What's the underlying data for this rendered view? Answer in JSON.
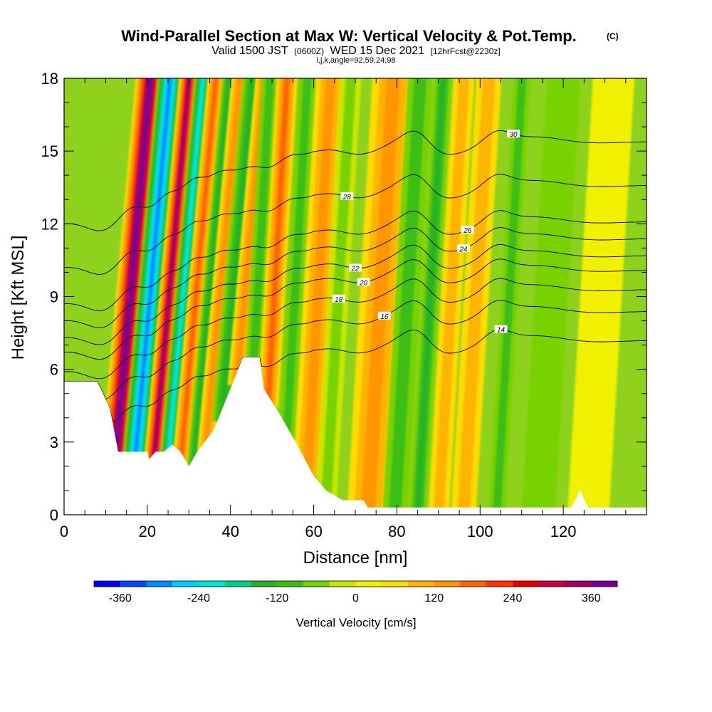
{
  "header": {
    "title": "Wind-Parallel Section at Max W: Vertical Velocity & Pot.Temp.",
    "copyright_mark": "(C)",
    "valid_prefix": "Valid 1500 JST",
    "valid_utc": "(0600Z)",
    "valid_date": "WED 15 Dec 2021",
    "forecast_info": "[12hrFcst@2230z]",
    "grid_info": "i,j,k,angle=92,59,24,98"
  },
  "chart_data": {
    "type": "heatmap",
    "title": "Wind-Parallel Section at Max W: Vertical Velocity & Pot.Temp.",
    "xlabel": "Distance [nm]",
    "ylabel": "Height [Kft MSL]",
    "xlim": [
      0,
      140
    ],
    "ylim": [
      0,
      18
    ],
    "x_ticks": [
      "0",
      "20",
      "40",
      "60",
      "80",
      "100",
      "120"
    ],
    "y_ticks": [
      "0",
      "3",
      "6",
      "9",
      "12",
      "15",
      "18"
    ],
    "colorbar": {
      "title": "Vertical Velocity [cm/s]",
      "tick_labels": [
        "-360",
        "-240",
        "-120",
        "0",
        "120",
        "240",
        "360"
      ],
      "colors": [
        "#0000ee",
        "#0044ff",
        "#008cff",
        "#00ccff",
        "#00e6d2",
        "#00d28c",
        "#28b428",
        "#3cbe14",
        "#78d200",
        "#c8e600",
        "#f0f000",
        "#ffdc00",
        "#ffb400",
        "#ff9600",
        "#ff6400",
        "#ff3200",
        "#e60000",
        "#c8003c",
        "#a00064",
        "#780096"
      ]
    },
    "velocity_bands": [
      {
        "x": 12.5,
        "w": 3.5,
        "v": 380
      },
      {
        "x": 17.0,
        "w": 3.0,
        "v": -320
      },
      {
        "x": 21.5,
        "w": 2.4,
        "v": 330
      },
      {
        "x": 25.0,
        "w": 2.0,
        "v": -220
      },
      {
        "x": 28.0,
        "w": 2.0,
        "v": 180
      },
      {
        "x": 31.0,
        "w": 1.6,
        "v": -150
      },
      {
        "x": 34.0,
        "w": 2.0,
        "v": 120
      },
      {
        "x": 38.0,
        "w": 2.5,
        "v": -130
      },
      {
        "x": 41.5,
        "w": 2.2,
        "v": 140
      },
      {
        "x": 45.5,
        "w": 2.0,
        "v": -110
      },
      {
        "x": 49.0,
        "w": 2.5,
        "v": 170
      },
      {
        "x": 53.5,
        "w": 2.0,
        "v": -100
      },
      {
        "x": 58.5,
        "w": 3.5,
        "v": 130
      },
      {
        "x": 63.0,
        "w": 2.5,
        "v": -70
      },
      {
        "x": 73.0,
        "w": 5.0,
        "v": 150
      },
      {
        "x": 79.5,
        "w": 3.0,
        "v": -90
      },
      {
        "x": 85.0,
        "w": 2.0,
        "v": -140
      },
      {
        "x": 90.0,
        "w": 2.5,
        "v": 90
      },
      {
        "x": 96.0,
        "w": 3.0,
        "v": 80
      },
      {
        "x": 104.0,
        "w": 2.0,
        "v": -110
      },
      {
        "x": 114.0,
        "w": 4.0,
        "v": -50
      },
      {
        "x": 126.0,
        "w": 5.0,
        "v": 20
      }
    ],
    "theta_isentropes": [
      {
        "label": "14",
        "base": 7.2,
        "label_x": 105
      },
      {
        "label": "16",
        "base": 8.4,
        "label_x": 77
      },
      {
        "label": "18",
        "base": 9.3,
        "label_x": 66
      },
      {
        "label": "20",
        "base": 10.1,
        "label_x": 72
      },
      {
        "label": "22",
        "base": 10.7,
        "label_x": 70
      },
      {
        "label": "24",
        "base": 11.4,
        "label_x": 96
      },
      {
        "label": "26",
        "base": 12.1,
        "label_x": 97
      },
      {
        "label": "28",
        "base": 13.6,
        "label_x": 68
      },
      {
        "label": "30",
        "base": 15.4,
        "label_x": 108
      }
    ],
    "terrain_points": [
      [
        0,
        5.5
      ],
      [
        8,
        5.5
      ],
      [
        11,
        4.4
      ],
      [
        13,
        2.6
      ],
      [
        20,
        2.6
      ],
      [
        20.5,
        2.3
      ],
      [
        22,
        2.6
      ],
      [
        24,
        2.6
      ],
      [
        26,
        2.9
      ],
      [
        28,
        2.6
      ],
      [
        30,
        2.0
      ],
      [
        32,
        2.6
      ],
      [
        36,
        3.5
      ],
      [
        40,
        5.2
      ],
      [
        43,
        6.5
      ],
      [
        47,
        6.5
      ],
      [
        48,
        5.2
      ],
      [
        52,
        4.1
      ],
      [
        56,
        2.9
      ],
      [
        60,
        1.6
      ],
      [
        63,
        1.0
      ],
      [
        67,
        0.6
      ],
      [
        72,
        0.6
      ],
      [
        73,
        0.3
      ],
      [
        122,
        0.3
      ],
      [
        124,
        1.0
      ],
      [
        126,
        0.3
      ],
      [
        140,
        0.3
      ]
    ]
  }
}
